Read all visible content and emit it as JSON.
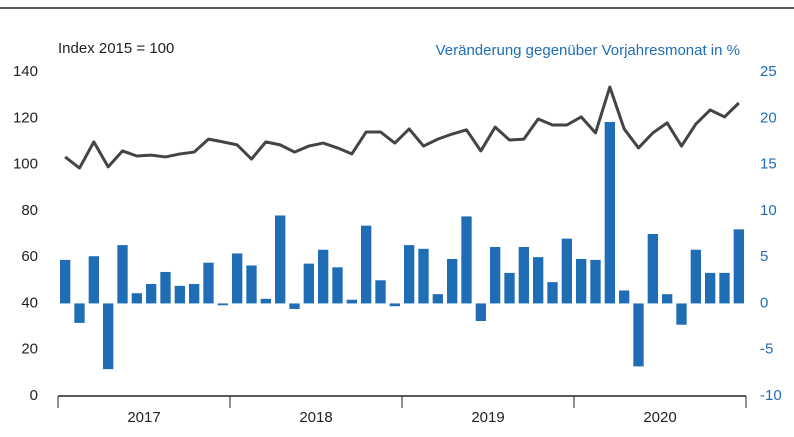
{
  "chart_data": {
    "type": "bar_line",
    "ylabel": "Index 2015 = 100",
    "y2label": "Veränderung gegenüber Vorjahresmonat in %",
    "years": [
      "2017",
      "2018",
      "2019",
      "2020"
    ],
    "series": [
      {
        "name": "Index 2015 = 100",
        "type": "line",
        "axis": "y",
        "color": "#444444",
        "values": [
          103.3,
          98.5,
          109.8,
          99,
          105.9,
          103.7,
          104.1,
          103.3,
          104.6,
          105.4,
          111,
          109.8,
          108.5,
          102.4,
          109.8,
          108.5,
          105.4,
          108,
          109.3,
          107.2,
          104.6,
          114.1,
          114.1,
          109.3,
          115.4,
          108,
          111,
          113.2,
          115,
          105.9,
          116.2,
          110.6,
          111,
          119.7,
          117.1,
          117.1,
          120.6,
          113.7,
          133.5,
          115.4,
          107.2,
          113.7,
          118,
          108,
          117.5,
          123.6,
          120.6,
          126.6
        ]
      },
      {
        "name": "Veränderung gegenüber Vorjahresmonat in %",
        "type": "bar",
        "axis": "y2",
        "color": "#1f6db5",
        "values": [
          4.7,
          -2.1,
          5.1,
          -7.1,
          6.3,
          1.1,
          2.1,
          3.4,
          1.9,
          2.1,
          4.4,
          -0.2,
          5.4,
          4.1,
          0.5,
          9.5,
          -0.6,
          4.3,
          5.8,
          3.9,
          0.4,
          8.4,
          2.5,
          -0.3,
          6.3,
          5.9,
          1,
          4.8,
          9.4,
          -1.9,
          6.1,
          3.3,
          6.1,
          5,
          2.3,
          7,
          4.8,
          4.7,
          19.6,
          1.4,
          -6.8,
          7.5,
          1,
          -2.3,
          5.8,
          3.3,
          3.3,
          8
        ]
      }
    ],
    "ylim": [
      0,
      140
    ],
    "yticks": [
      0,
      20,
      40,
      60,
      80,
      100,
      120,
      140
    ],
    "y2lim": [
      -10,
      25
    ],
    "y2ticks": [
      -10,
      -5,
      0,
      5,
      10,
      15,
      20,
      25
    ]
  }
}
